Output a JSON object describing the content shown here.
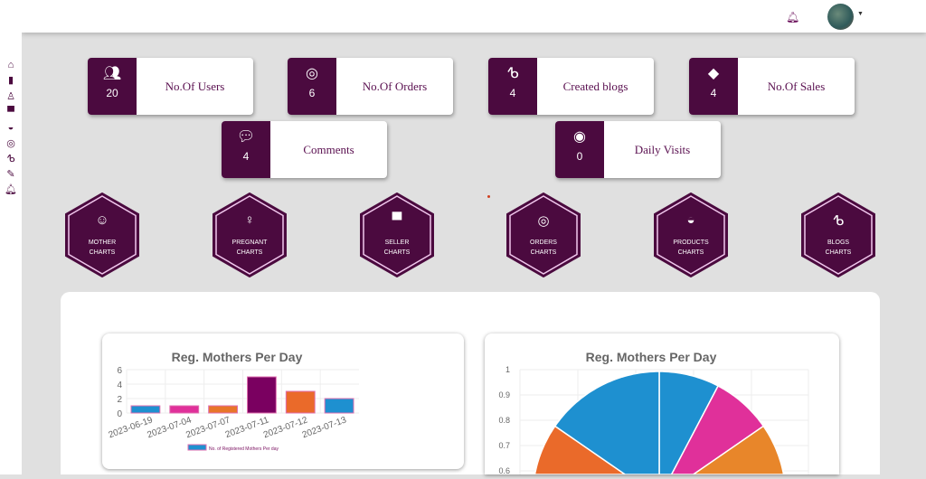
{
  "sidebar": {
    "items": [
      "home-icon",
      "book-icon",
      "mother-icon",
      "store-icon",
      "basket-icon",
      "lifering-icon",
      "blog-icon",
      "syringe-icon",
      "bell-icon"
    ]
  },
  "header": {
    "notifications_icon": "bell-icon",
    "avatar": "user-avatar"
  },
  "stats": [
    {
      "label": "No.Of Users",
      "value": "20",
      "icon": "users-icon"
    },
    {
      "label": "No.Of Orders",
      "value": "6",
      "icon": "lifering-icon"
    },
    {
      "label": "Created blogs",
      "value": "4",
      "icon": "blog-icon"
    },
    {
      "label": "No.Of Sales",
      "value": "4",
      "icon": "tag-icon"
    },
    {
      "label": "Comments",
      "value": "4",
      "icon": "comments-icon"
    },
    {
      "label": "Daily Visits",
      "value": "0",
      "icon": "eye-icon"
    }
  ],
  "hexes": [
    {
      "line1": "MOTHER",
      "line2": "CHARTS",
      "icon": "accessibility-icon"
    },
    {
      "line1": "PREGNANT",
      "line2": "CHARTS",
      "icon": "pregnant-icon"
    },
    {
      "line1": "SELLER",
      "line2": "CHARTS",
      "icon": "store-icon"
    },
    {
      "line1": "ORDERS",
      "line2": "CHARTS",
      "icon": "lifering-icon"
    },
    {
      "line1": "PRODUCTS",
      "line2": "CHARTS",
      "icon": "basket-icon"
    },
    {
      "line1": "BLOGS",
      "line2": "CHARTS",
      "icon": "blog-icon"
    }
  ],
  "chart_data": [
    {
      "type": "bar",
      "title": "Reg. Mothers Per Day",
      "categories": [
        "2023-06-19",
        "2023-07-04",
        "2023-07-07",
        "2023-07-11",
        "2023-07-12",
        "2023-07-13"
      ],
      "values": [
        1,
        1,
        1,
        5,
        3,
        2
      ],
      "colors": [
        "#1e90d0",
        "#e0309a",
        "#e8762a",
        "#7a0060",
        "#ea6a2a",
        "#1e90d0"
      ],
      "ylim": [
        0,
        6
      ],
      "yticks": [
        0,
        2,
        4,
        6
      ],
      "legend": "No. of Registered Mothers Per day",
      "legend_position": "bottom"
    },
    {
      "type": "pie",
      "title": "Reg. Mothers Per Day",
      "categories": [
        "2023-06-19",
        "2023-07-04",
        "2023-07-07",
        "2023-07-11",
        "2023-07-12",
        "2023-07-13"
      ],
      "values": [
        1,
        1,
        1,
        5,
        3,
        2
      ],
      "colors": [
        "#1e90d0",
        "#e0309a",
        "#e8862a",
        "#7a0060",
        "#ea6a2a",
        "#1e90d0"
      ],
      "yticks": [
        "1",
        "0.9",
        "0.8",
        "0.7",
        "0.6"
      ]
    }
  ]
}
